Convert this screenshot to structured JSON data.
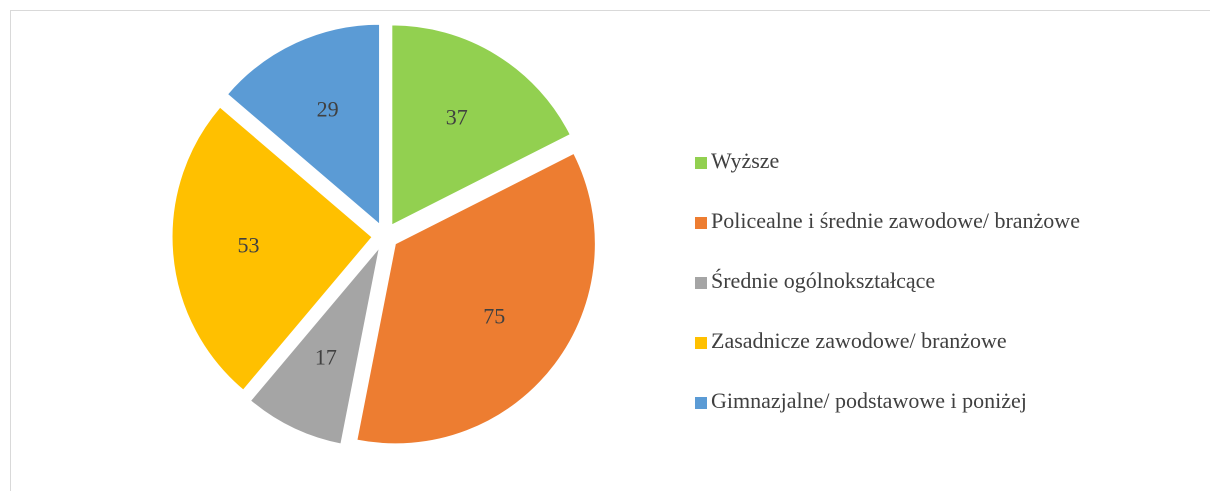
{
  "chart_data": {
    "type": "pie",
    "categories": [
      "Wyższe",
      "Policealne i średnie zawodowe/ branżowe",
      "Średnie ogólnokształcące",
      "Zasadnicze zawodowe/ branżowe",
      "Gimnazjalne/ podstawowe i poniżej"
    ],
    "values": [
      37,
      75,
      17,
      53,
      29
    ],
    "colors": [
      "#92d050",
      "#ed7d31",
      "#a5a5a5",
      "#ffc000",
      "#5b9bd5"
    ],
    "legend": "right"
  }
}
